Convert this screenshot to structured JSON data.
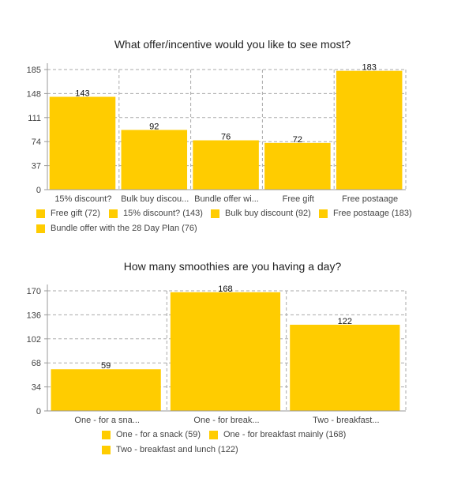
{
  "colors": {
    "bar": "#FFCC00",
    "grid": "#aaaaaa",
    "axis": "#999999",
    "text": "#444444"
  },
  "chart_data": [
    {
      "type": "bar",
      "title": "What offer/incentive would you like to see most?",
      "categories": [
        "15% discount?",
        "Bulk buy discou...",
        "Bundle offer wi...",
        "Free gift",
        "Free postaage"
      ],
      "values": [
        143,
        92,
        76,
        72,
        183
      ],
      "yticks": [
        0,
        37,
        74,
        111,
        148,
        185
      ],
      "ylim": [
        0,
        185
      ],
      "grid": true,
      "legend": [
        "Free gift (72)",
        "15% discount? (143)",
        "Bulk buy discount (92)",
        "Free postaage (183)",
        "Bundle offer with the 28 Day Plan (76)"
      ]
    },
    {
      "type": "bar",
      "title": "How many smoothies are you having a day?",
      "categories": [
        "One - for a sna...",
        "One - for break...",
        "Two - breakfast..."
      ],
      "values": [
        59,
        168,
        122
      ],
      "yticks": [
        0,
        34,
        68,
        102,
        136,
        170
      ],
      "ylim": [
        0,
        170
      ],
      "grid": true,
      "legend": [
        "One - for a snack (59)",
        "One - for breakfast mainly (168)",
        "Two - breakfast and lunch (122)"
      ]
    }
  ]
}
